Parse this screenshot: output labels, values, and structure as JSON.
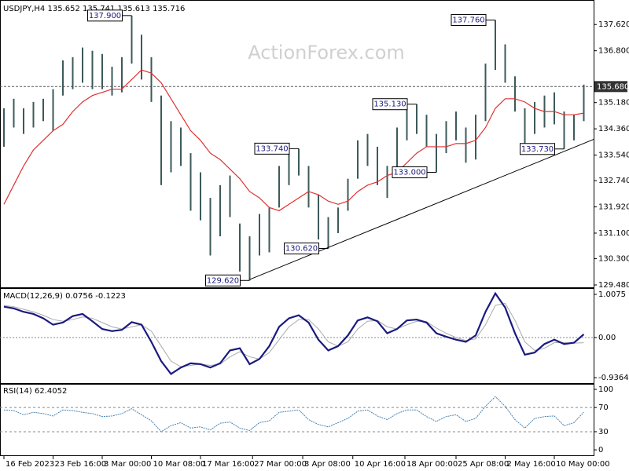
{
  "chart_data": [
    {
      "type": "range-bar",
      "title": "USDJPY,H4  135.652 135.741 135.613 135.716",
      "watermark": "ActionForex.com",
      "color": "#3c5a5a",
      "ma_color": "#e03030",
      "ylim": [
        129.406,
        138.362
      ],
      "yticks": [
        {
          "value": 137.62,
          "label": "137.620"
        },
        {
          "value": 136.8,
          "label": "136.800"
        },
        {
          "value": 135.18,
          "label": "135.180"
        },
        {
          "value": 134.36,
          "label": "134.360"
        },
        {
          "value": 133.54,
          "label": "133.540"
        },
        {
          "value": 132.74,
          "label": "132.740"
        },
        {
          "value": 131.92,
          "label": "131.920"
        },
        {
          "value": 131.1,
          "label": "131.100"
        },
        {
          "value": 130.3,
          "label": "130.300"
        },
        {
          "value": 129.48,
          "label": "129.480"
        }
      ],
      "current": {
        "value": 135.68,
        "label": "135.680"
      },
      "high": [
        135.0,
        135.3,
        135.0,
        135.2,
        135.3,
        135.6,
        136.5,
        136.6,
        136.9,
        136.8,
        136.7,
        136.3,
        136.6,
        137.9,
        137.3,
        136.6,
        135.4,
        134.6,
        134.4,
        133.6,
        133.0,
        132.2,
        132.6,
        132.9,
        131.4,
        131.0,
        131.7,
        131.9,
        133.2,
        133.6,
        133.74,
        133.2,
        132.3,
        131.6,
        131.9,
        132.8,
        134.0,
        134.2,
        133.8,
        133.2,
        134.4,
        135.0,
        135.13,
        134.8,
        134.2,
        134.6,
        134.9,
        134.4,
        134.8,
        136.4,
        137.76,
        137.0,
        136.0,
        135.0,
        135.2,
        135.4,
        135.5,
        134.9,
        134.8,
        135.741
      ],
      "low": [
        133.8,
        134.4,
        134.2,
        134.4,
        134.6,
        134.3,
        135.4,
        135.6,
        135.8,
        135.6,
        135.6,
        135.4,
        135.5,
        136.4,
        135.9,
        135.2,
        132.6,
        133.0,
        133.2,
        131.8,
        131.5,
        130.4,
        131.0,
        131.6,
        129.9,
        129.62,
        130.4,
        130.5,
        131.9,
        132.6,
        132.9,
        131.9,
        130.9,
        130.62,
        131.1,
        131.8,
        132.8,
        133.2,
        132.6,
        132.2,
        133.0,
        134.0,
        134.2,
        133.8,
        133.0,
        133.6,
        134.0,
        133.3,
        133.4,
        134.6,
        136.2,
        135.8,
        134.9,
        133.7,
        134.2,
        134.4,
        134.5,
        133.73,
        134.0,
        134.6
      ],
      "ma": [
        132.0,
        132.6,
        133.2,
        133.7,
        134.0,
        134.3,
        134.5,
        134.9,
        135.2,
        135.4,
        135.5,
        135.6,
        135.6,
        135.9,
        136.2,
        136.1,
        135.8,
        135.3,
        134.8,
        134.3,
        134.0,
        133.6,
        133.4,
        133.1,
        132.8,
        132.4,
        132.2,
        131.9,
        131.8,
        132.0,
        132.2,
        132.4,
        132.3,
        132.1,
        132.0,
        132.1,
        132.4,
        132.6,
        132.7,
        132.9,
        133.0,
        133.3,
        133.6,
        133.8,
        133.8,
        133.8,
        133.9,
        133.9,
        134.0,
        134.4,
        135.0,
        135.3,
        135.3,
        135.2,
        135.0,
        134.9,
        134.9,
        134.8,
        134.8,
        134.85
      ],
      "trendline": [
        [
          25,
          129.65
        ],
        [
          60,
          134.03
        ]
      ],
      "annotations": [
        {
          "text": "137.900",
          "value": 137.9,
          "x": 13
        },
        {
          "text": "129.620",
          "value": 129.62,
          "x": 25
        },
        {
          "text": "133.740",
          "value": 133.74,
          "x": 30
        },
        {
          "text": "130.620",
          "value": 130.62,
          "x": 33
        },
        {
          "text": "135.130",
          "value": 135.13,
          "x": 42
        },
        {
          "text": "133.000",
          "value": 133.0,
          "x": 44
        },
        {
          "text": "137.760",
          "value": 137.76,
          "x": 50
        },
        {
          "text": "133.730",
          "value": 133.73,
          "x": 57
        }
      ]
    },
    {
      "type": "line",
      "title": "MACD(12,26,9) 0.0756 -0.1223",
      "ylim": [
        -1.062,
        1.1355
      ],
      "yticks": [
        {
          "value": 1.0075,
          "label": "1.0075"
        },
        {
          "value": 0,
          "label": "0.00"
        },
        {
          "value": -0.9364,
          "label": "-0.9364"
        }
      ],
      "series": [
        {
          "name": "MACD",
          "color": "#1a1a80",
          "values": [
            0.72,
            0.68,
            0.6,
            0.55,
            0.45,
            0.3,
            0.35,
            0.5,
            0.55,
            0.38,
            0.2,
            0.15,
            0.18,
            0.36,
            0.3,
            -0.1,
            -0.55,
            -0.85,
            -0.7,
            -0.6,
            -0.62,
            -0.7,
            -0.6,
            -0.3,
            -0.25,
            -0.62,
            -0.5,
            -0.2,
            0.25,
            0.45,
            0.52,
            0.35,
            -0.05,
            -0.3,
            -0.2,
            0.05,
            0.4,
            0.47,
            0.38,
            0.1,
            0.2,
            0.4,
            0.42,
            0.35,
            0.1,
            0.02,
            -0.05,
            -0.1,
            0.05,
            0.6,
            1.03,
            0.7,
            0.1,
            -0.4,
            -0.35,
            -0.15,
            -0.05,
            -0.15,
            -0.12,
            0.0756
          ]
        },
        {
          "name": "Signal",
          "color": "#aaaaaa",
          "values": [
            0.75,
            0.72,
            0.66,
            0.6,
            0.52,
            0.42,
            0.38,
            0.42,
            0.48,
            0.45,
            0.35,
            0.25,
            0.2,
            0.25,
            0.3,
            0.15,
            -0.2,
            -0.55,
            -0.68,
            -0.65,
            -0.62,
            -0.65,
            -0.62,
            -0.45,
            -0.33,
            -0.45,
            -0.5,
            -0.35,
            -0.05,
            0.25,
            0.42,
            0.42,
            0.2,
            -0.1,
            -0.2,
            -0.1,
            0.2,
            0.38,
            0.4,
            0.25,
            0.2,
            0.3,
            0.38,
            0.37,
            0.22,
            0.1,
            0.0,
            -0.07,
            -0.03,
            0.3,
            0.75,
            0.8,
            0.4,
            -0.1,
            -0.3,
            -0.25,
            -0.12,
            -0.12,
            -0.13,
            -0.1223
          ]
        }
      ]
    },
    {
      "type": "line",
      "title": "RSI(14) 62.4052",
      "ylim": [
        -9,
        107.8
      ],
      "yticks": [
        100,
        70,
        30,
        0
      ],
      "levels": [
        70,
        30
      ],
      "xlim": [
        -0.4,
        60
      ],
      "xticks": [
        {
          "value": 0,
          "label": "16 Feb 2023"
        },
        {
          "value": 5,
          "label": "23 Feb 16:00"
        },
        {
          "value": 10,
          "label": "3 Mar 00:00"
        },
        {
          "value": 15,
          "label": "10 Mar 08:00"
        },
        {
          "value": 20,
          "label": "17 Mar 16:00"
        },
        {
          "value": 25.3,
          "label": "27 Mar 00:00"
        },
        {
          "value": 30.4,
          "label": "3 Apr 08:00"
        },
        {
          "value": 35.5,
          "label": "10 Apr 16:00"
        },
        {
          "value": 40.8,
          "label": "18 Apr 00:00"
        },
        {
          "value": 46,
          "label": "25 Apr 08:00"
        },
        {
          "value": 51,
          "label": "2 May 16:00"
        },
        {
          "value": 56,
          "label": "10 May 00:00"
        }
      ],
      "series": [
        {
          "name": "RSI",
          "color": "#4682b4",
          "values": [
            66,
            65,
            58,
            62,
            60,
            56,
            66,
            65,
            62,
            60,
            55,
            56,
            60,
            68,
            58,
            48,
            30,
            40,
            45,
            36,
            38,
            33,
            44,
            46,
            36,
            32,
            45,
            48,
            62,
            64,
            66,
            50,
            42,
            38,
            45,
            52,
            64,
            66,
            56,
            50,
            60,
            66,
            66,
            55,
            47,
            55,
            58,
            47,
            52,
            72,
            88,
            72,
            50,
            36,
            52,
            55,
            56,
            40,
            45,
            62.4052
          ]
        }
      ]
    }
  ]
}
